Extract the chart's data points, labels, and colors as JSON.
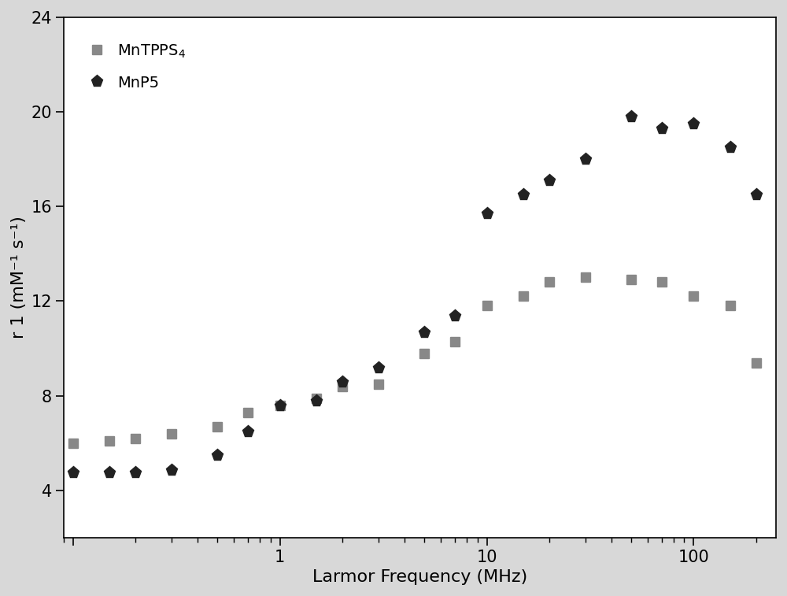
{
  "title": "",
  "xlabel": "Larmor Frequency (MHz)",
  "ylabel": "r 1 (mM⁻¹ s⁻¹)",
  "xlim": [
    0.09,
    250
  ],
  "ylim": [
    2,
    24
  ],
  "yticks": [
    4,
    8,
    12,
    16,
    20,
    24
  ],
  "background_color": "#ffffff",
  "outer_background": "#d8d8d8",
  "MnTPPS4": {
    "label": "MnTPPS$_4$",
    "color": "#888888",
    "marker": "s",
    "markersize": 9,
    "x": [
      0.1,
      0.15,
      0.2,
      0.3,
      0.5,
      0.7,
      1.0,
      1.5,
      2.0,
      3.0,
      5.0,
      7.0,
      10.0,
      15.0,
      20.0,
      30.0,
      50.0,
      70.0,
      100.0,
      150.0,
      200.0
    ],
    "y": [
      6.0,
      6.1,
      6.2,
      6.4,
      6.7,
      7.3,
      7.6,
      7.9,
      8.4,
      8.5,
      9.8,
      10.3,
      11.8,
      12.2,
      12.8,
      13.0,
      12.9,
      12.8,
      12.2,
      11.8,
      9.4
    ]
  },
  "MnP5": {
    "label": "MnP5",
    "color": "#222222",
    "marker": "p",
    "markersize": 11,
    "x": [
      0.1,
      0.15,
      0.2,
      0.3,
      0.5,
      0.7,
      1.0,
      1.5,
      2.0,
      3.0,
      5.0,
      7.0,
      10.0,
      15.0,
      20.0,
      30.0,
      50.0,
      70.0,
      100.0,
      150.0,
      200.0
    ],
    "y": [
      4.75,
      4.75,
      4.75,
      4.85,
      5.5,
      6.5,
      7.6,
      7.8,
      8.6,
      9.2,
      10.7,
      11.4,
      15.7,
      16.5,
      17.1,
      18.0,
      19.8,
      19.3,
      19.5,
      18.5,
      16.5
    ]
  }
}
